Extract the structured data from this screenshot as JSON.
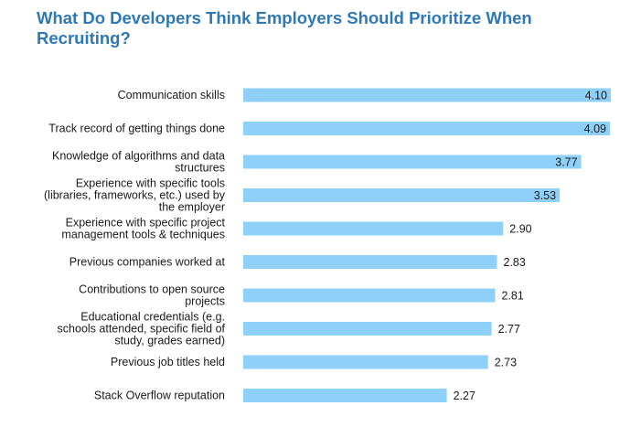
{
  "chart_data": {
    "type": "bar",
    "orientation": "horizontal",
    "title": "What Do Developers Think Employers Should Prioritize When Recruiting?",
    "categories": [
      "Communication skills",
      "Track record of getting things done",
      "Knowledge of algorithms and data structures",
      "Experience with specific tools (libraries, frameworks, etc.) used by the employer",
      "Experience with specific project management tools & techniques",
      "Previous companies worked at",
      "Contributions to open source projects",
      "Educational credentials (e.g. schools attended, specific field of study, grades earned)",
      "Previous job titles held",
      "Stack Overflow reputation"
    ],
    "category_lines": [
      [
        "Communication skills"
      ],
      [
        "Track record of getting things done"
      ],
      [
        "Knowledge of algorithms and data",
        "structures"
      ],
      [
        "Experience with specific tools",
        "(libraries, frameworks, etc.) used by",
        "the employer"
      ],
      [
        "Experience with specific project",
        "management tools & techniques"
      ],
      [
        "Previous companies worked at"
      ],
      [
        "Contributions to open source",
        "projects"
      ],
      [
        "Educational credentials (e.g.",
        "schools attended, specific field of",
        "study, grades earned)"
      ],
      [
        "Previous job titles held"
      ],
      [
        "Stack Overflow reputation"
      ]
    ],
    "values": [
      4.1,
      4.09,
      3.77,
      3.53,
      2.9,
      2.83,
      2.81,
      2.77,
      2.73,
      2.27
    ],
    "value_labels": [
      "4.10",
      "4.09",
      "3.77",
      "3.53",
      "2.90",
      "2.83",
      "2.81",
      "2.77",
      "2.73",
      "2.27"
    ],
    "xlim": [
      0,
      4.1
    ],
    "grid": false,
    "bar_color": "#8fd0f9",
    "title_color": "#2f78b6"
  }
}
